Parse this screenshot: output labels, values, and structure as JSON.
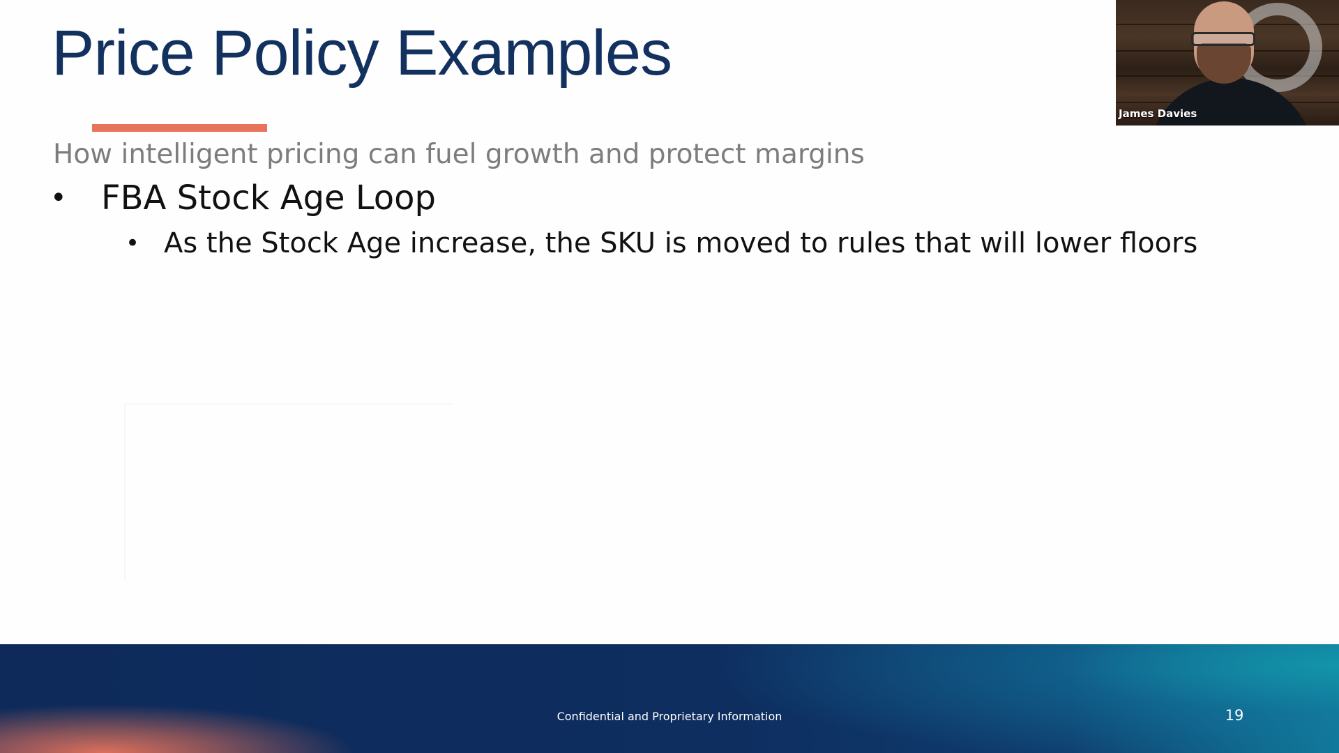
{
  "slide": {
    "title": "Price Policy Examples",
    "subtitle": "How intelligent pricing can fuel growth and protect margins",
    "bullets": [
      {
        "marker": "•",
        "text": "FBA Stock Age Loop",
        "children": [
          {
            "marker": "•",
            "text": "As the Stock Age increase, the SKU is moved to rules that will lower floors"
          }
        ]
      }
    ],
    "footer": {
      "text": "Confidential and Proprietary Information",
      "page_number": "19"
    }
  },
  "video_tile": {
    "participant_name": "James Davies"
  },
  "colors": {
    "title": "#13315f",
    "accent": "#e8735a",
    "subtitle": "#7d7d7d",
    "footer_dark": "#0d2a5a",
    "footer_teal": "#117a9a"
  }
}
